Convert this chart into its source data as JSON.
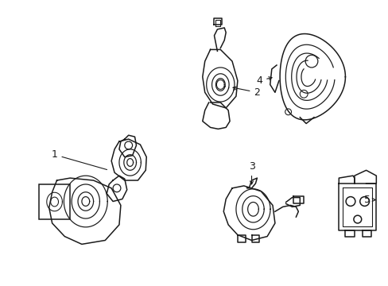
{
  "background_color": "#ffffff",
  "line_color": "#1a1a1a",
  "line_width": 1.1,
  "fig_width": 4.89,
  "fig_height": 3.6,
  "dpi": 100
}
